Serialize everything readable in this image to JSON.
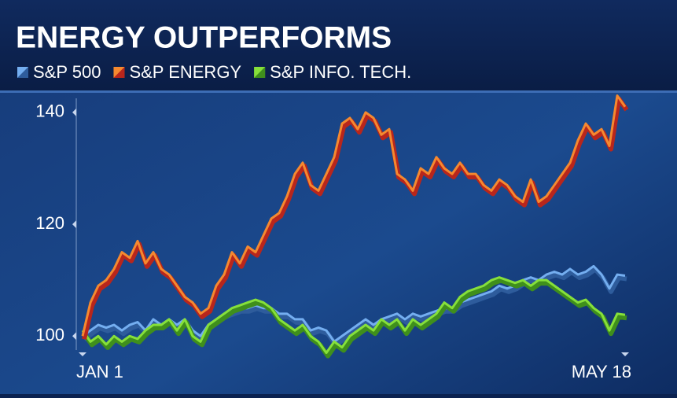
{
  "chart_data": {
    "type": "line",
    "title": "ENERGY OUTPERFORMS",
    "categories": [
      "JAN 1",
      null,
      null,
      null,
      null,
      null,
      null,
      null,
      null,
      null,
      null,
      null,
      null,
      null,
      null,
      null,
      null,
      null,
      null,
      null,
      null,
      null,
      null,
      null,
      null,
      null,
      null,
      null,
      null,
      null,
      null,
      null,
      null,
      null,
      null,
      null,
      null,
      null,
      null,
      null,
      null,
      null,
      null,
      null,
      null,
      null,
      null,
      null,
      null,
      null,
      null,
      null,
      null,
      null,
      null,
      null,
      null,
      null,
      null,
      null,
      null,
      null,
      null,
      null,
      null,
      null,
      null,
      null,
      null,
      "MAY 18"
    ],
    "series": [
      {
        "name": "S&P 500",
        "color": "#74aef0",
        "values": [
          100,
          101,
          102,
          101.5,
          102,
          101,
          102,
          102.5,
          101,
          103,
          102,
          103,
          102,
          103,
          101,
          100,
          102,
          103,
          104,
          104.5,
          105,
          105,
          105.5,
          105,
          105,
          104,
          104,
          103,
          103,
          101,
          101.5,
          101,
          99,
          100,
          101,
          102,
          103,
          102,
          103,
          103.5,
          104,
          103,
          104,
          103.5,
          104,
          104.5,
          105,
          105,
          106,
          106.5,
          107,
          107.5,
          108,
          109,
          108.5,
          109,
          110,
          110.5,
          110,
          111,
          111.5,
          111,
          112,
          111,
          111.5,
          112.5,
          111,
          108.5,
          111,
          110.8
        ]
      },
      {
        "name": "S&P ENERGY",
        "color": "#f5892f",
        "values": [
          100,
          106,
          109,
          110,
          112,
          115,
          114,
          117,
          113,
          115,
          112,
          111,
          109,
          107,
          106,
          104,
          105,
          109,
          111,
          115,
          113,
          116,
          115,
          118,
          121,
          122,
          125,
          129,
          131,
          127,
          126,
          129,
          132,
          138,
          139,
          137,
          140,
          139,
          136,
          137,
          129,
          128,
          126,
          130,
          129,
          132,
          130,
          129,
          131,
          129,
          129,
          127,
          126,
          128,
          127,
          125,
          124,
          128,
          124,
          125,
          127,
          129,
          131,
          135,
          138,
          136,
          137,
          134,
          143,
          141
        ]
      },
      {
        "name": "S&P INFO. TECH.",
        "color": "#86e03a",
        "values": [
          101,
          99,
          100,
          98.5,
          100,
          99,
          100,
          99.5,
          101,
          102,
          102,
          103,
          101,
          103,
          100,
          99,
          102,
          103,
          104,
          105,
          105.5,
          106,
          106.5,
          106,
          105,
          103,
          102,
          101,
          102,
          100,
          99,
          97,
          99,
          98,
          100,
          101,
          102,
          101,
          103,
          102,
          103,
          101,
          103,
          102,
          103,
          104,
          106,
          105,
          107,
          108,
          108.5,
          109,
          110,
          110.5,
          110,
          109.5,
          110,
          109,
          110,
          110,
          109,
          108,
          107,
          106,
          106.5,
          105,
          104,
          101,
          104,
          103.8
        ]
      }
    ],
    "ylim": [
      96.8,
      143.5
    ],
    "yticks": [
      100,
      120,
      140
    ]
  }
}
